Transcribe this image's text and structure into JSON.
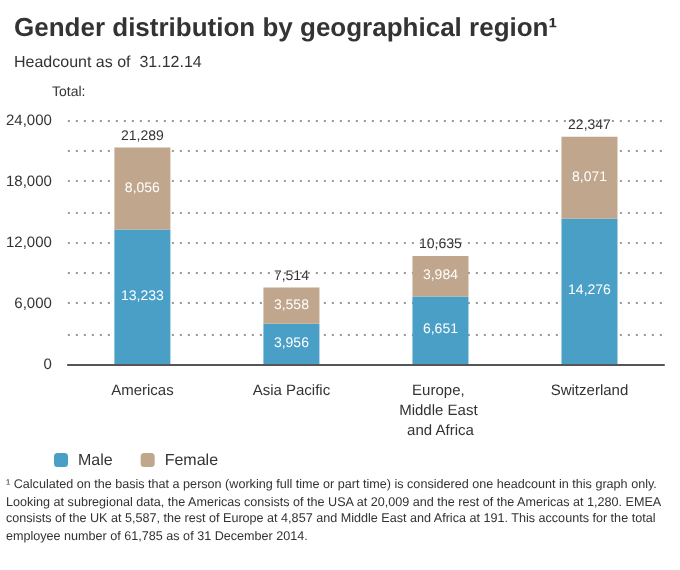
{
  "chart_data": {
    "type": "bar",
    "title": "Gender distribution by geographical region¹",
    "subtitle": "Headcount as of  31.12.14",
    "categories": [
      "Americas",
      "Asia Pacific",
      "Europe, Middle East and Africa",
      "Switzerland"
    ],
    "series": [
      {
        "name": "Male",
        "color": "#4a9fc6",
        "values": [
          13233,
          3956,
          6651,
          14276
        ],
        "value_labels": [
          "13,233",
          "3,956",
          "6,651",
          "14,276"
        ]
      },
      {
        "name": "Female",
        "color": "#bfa68c",
        "values": [
          8056,
          3558,
          3984,
          8071
        ],
        "value_labels": [
          "8,056",
          "3,558",
          "3,984",
          "8,071"
        ]
      }
    ],
    "stacked": true,
    "totals": [
      "21,289",
      "7,514",
      "10,635",
      "22,347"
    ],
    "ylim": [
      0,
      24000
    ],
    "yticks": [
      0,
      {
        "value": 3000,
        "label": null
      },
      {
        "value": 6000,
        "label": "6,000"
      },
      {
        "value": 9000,
        "label": null
      },
      {
        "value": 12000,
        "label": "12,000"
      },
      {
        "value": 15000,
        "label": null
      },
      {
        "value": 18000,
        "label": "18,000"
      },
      {
        "value": 21000,
        "label": null
      },
      {
        "value": 24000,
        "label": "24,000"
      }
    ],
    "grid": "y",
    "legend": "bottom left",
    "annotations": [
      "Total:",
      "¹ Calculated on the basis that a person (working full time or part time) is considered one headcount in this graph only. Looking at subregional data, the Americas consists of the USA at 20,009 and the rest of the Americas at 1,280. EMEA consists of the UK at 5,587, the rest of Europe at 4,857 and Middle East and Africa at 191. This accounts for the total employee number of 61,785 as of 31 December 2014."
    ]
  }
}
